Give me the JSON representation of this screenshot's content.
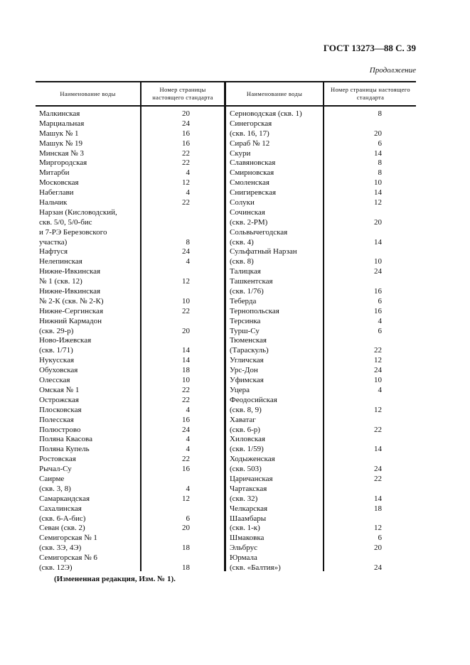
{
  "header": {
    "title": "ГОСТ 13273—88 С. 39",
    "continuation": "Продолжение"
  },
  "table": {
    "columns": [
      "Наименование воды",
      "Номер страницы настоящего стандарта",
      "Наименование воды",
      "Номер страницы настоящего стандарта"
    ],
    "left_rows": [
      [
        "Малкинская",
        "20"
      ],
      [
        "Марциальная",
        "24"
      ],
      [
        "Машук № 1",
        "16"
      ],
      [
        "Машук № 19",
        "16"
      ],
      [
        "Минская № 3",
        "22"
      ],
      [
        "Миргородская",
        "22"
      ],
      [
        "Митарби",
        "4"
      ],
      [
        "Московская",
        "12"
      ],
      [
        "Набеглави",
        "4"
      ],
      [
        "Нальчик",
        "22"
      ],
      [
        "Нарзан (Кисловодский,",
        ""
      ],
      [
        "скв. 5/0, 5/0-бис",
        ""
      ],
      [
        "и 7-РЭ Березовского",
        ""
      ],
      [
        "участка)",
        "8"
      ],
      [
        "Нафтуся",
        "24"
      ],
      [
        "Нелепинская",
        "4"
      ],
      [
        "Нижне-Ивкинская",
        ""
      ],
      [
        "№ 1 (скв. 12)",
        "12"
      ],
      [
        "Нижне-Ивкинская",
        ""
      ],
      [
        "№ 2-К (скв. № 2-К)",
        "10"
      ],
      [
        "Нижне-Сергинская",
        "22"
      ],
      [
        "Нижний Кармадон",
        ""
      ],
      [
        "(скв. 29-р)",
        "20"
      ],
      [
        "Ново-Ижевская",
        ""
      ],
      [
        "(скв. 1/71)",
        "14"
      ],
      [
        "Нукусская",
        "14"
      ],
      [
        "Обуховская",
        "18"
      ],
      [
        "Олесская",
        "10"
      ],
      [
        "Омская № 1",
        "22"
      ],
      [
        "Острожская",
        "22"
      ],
      [
        "Плосковская",
        "4"
      ],
      [
        "Полесская",
        "16"
      ],
      [
        "Полюстрово",
        "24"
      ],
      [
        "Поляна Квасова",
        "4"
      ],
      [
        "Поляна Купель",
        "4"
      ],
      [
        "Ростовская",
        "22"
      ],
      [
        "Рычал-Су",
        "16"
      ],
      [
        "Саирме",
        ""
      ],
      [
        "(скв. 3, 8)",
        "4"
      ],
      [
        "Самаркандская",
        "12"
      ],
      [
        "Сахалинская",
        ""
      ],
      [
        "(скв. 6-А-бис)",
        "6"
      ],
      [
        "Севан (скв. 2)",
        "20"
      ],
      [
        "Семигорская № 1",
        ""
      ],
      [
        "(скв. 3Э, 4Э)",
        "18"
      ],
      [
        "Семигорская № 6",
        ""
      ],
      [
        "(скв. 12Э)",
        "18"
      ]
    ],
    "right_rows": [
      [
        "Серноводская (скв. 1)",
        "8"
      ],
      [
        "Синегорская",
        ""
      ],
      [
        "(скв. 16, 17)",
        "20"
      ],
      [
        "Сираб № 12",
        "6"
      ],
      [
        "Скури",
        "14"
      ],
      [
        "Славяновская",
        "8"
      ],
      [
        "Смирновская",
        "8"
      ],
      [
        "Смоленская",
        "10"
      ],
      [
        "Снигиревская",
        "14"
      ],
      [
        "Солуки",
        "12"
      ],
      [
        "Сочинская",
        ""
      ],
      [
        "(скв. 2-РМ)",
        "20"
      ],
      [
        "Сольвычегодская",
        ""
      ],
      [
        "(скв. 4)",
        "14"
      ],
      [
        "Сульфатный Нарзан",
        ""
      ],
      [
        "(скв. 8)",
        "10"
      ],
      [
        "Талицкая",
        "24"
      ],
      [
        "Ташкентская",
        ""
      ],
      [
        "(скв. 1/76)",
        "16"
      ],
      [
        "Теберда",
        "6"
      ],
      [
        "Тернопольская",
        "16"
      ],
      [
        "Терсинка",
        "4"
      ],
      [
        "Турш-Су",
        "6"
      ],
      [
        "Тюменская",
        ""
      ],
      [
        "(Тараскуль)",
        "22"
      ],
      [
        "Угличская",
        "12"
      ],
      [
        "Урс-Дон",
        "24"
      ],
      [
        "Уфимская",
        "10"
      ],
      [
        "Уцера",
        "4"
      ],
      [
        "Феодосийская",
        ""
      ],
      [
        "(скв. 8, 9)",
        "12"
      ],
      [
        "Хаватаг",
        ""
      ],
      [
        "(скв. 6-р)",
        "22"
      ],
      [
        "Хиловская",
        ""
      ],
      [
        "(скв. 1/59)",
        "14"
      ],
      [
        "Ходыженская",
        ""
      ],
      [
        "(скв. 503)",
        "24"
      ],
      [
        "Царичанская",
        "22"
      ],
      [
        "Чартакская",
        ""
      ],
      [
        "(скв. 32)",
        "14"
      ],
      [
        "Челкарская",
        "18"
      ],
      [
        "Шаамбары",
        ""
      ],
      [
        "(скв. 1-к)",
        "12"
      ],
      [
        "Шмаковка",
        "6"
      ],
      [
        "Эльбрус",
        "20"
      ],
      [
        "Юрмала",
        ""
      ],
      [
        "(скв. «Балтия»)",
        "24"
      ]
    ]
  },
  "footer": {
    "note": "(Измененная редакция, Изм. № 1)."
  }
}
